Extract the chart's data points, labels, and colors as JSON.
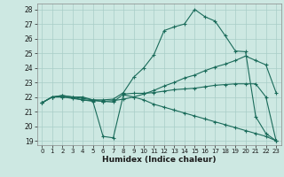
{
  "xlabel": "Humidex (Indice chaleur)",
  "bg_color": "#cde8e2",
  "grid_color": "#a8cdc7",
  "line_color": "#1a6b5a",
  "xlim": [
    -0.5,
    23.5
  ],
  "ylim": [
    18.7,
    28.4
  ],
  "yticks": [
    19,
    20,
    21,
    22,
    23,
    24,
    25,
    26,
    27,
    28
  ],
  "xticks": [
    0,
    1,
    2,
    3,
    4,
    5,
    6,
    7,
    8,
    9,
    10,
    11,
    12,
    13,
    14,
    15,
    16,
    17,
    18,
    19,
    20,
    21,
    22,
    23
  ],
  "line1_x": [
    0,
    1,
    2,
    3,
    4,
    5,
    6,
    7,
    8,
    9,
    10,
    11,
    12,
    13,
    14,
    15,
    16,
    17,
    18,
    19,
    20,
    21,
    22,
    23
  ],
  "line1_y": [
    21.6,
    22.0,
    22.1,
    22.0,
    21.9,
    21.8,
    21.8,
    21.85,
    22.3,
    23.35,
    24.0,
    24.9,
    26.55,
    26.8,
    27.0,
    28.0,
    27.5,
    27.2,
    26.2,
    25.15,
    25.1,
    20.65,
    19.5,
    19.0
  ],
  "line2_x": [
    0,
    1,
    2,
    3,
    4,
    5,
    6,
    7,
    8,
    9,
    10,
    11,
    12,
    13,
    14,
    15,
    16,
    17,
    18,
    19,
    20,
    21,
    22,
    23
  ],
  "line2_y": [
    21.6,
    22.0,
    22.1,
    22.0,
    22.0,
    21.8,
    21.7,
    21.75,
    21.85,
    22.0,
    22.2,
    22.45,
    22.75,
    23.0,
    23.3,
    23.5,
    23.8,
    24.05,
    24.25,
    24.5,
    24.8,
    24.5,
    24.2,
    22.3
  ],
  "line3_x": [
    0,
    1,
    2,
    3,
    4,
    5,
    6,
    7,
    8,
    9,
    10,
    11,
    12,
    13,
    14,
    15,
    16,
    17,
    18,
    19,
    20,
    21,
    22,
    23
  ],
  "line3_y": [
    21.6,
    22.0,
    22.0,
    21.95,
    21.8,
    21.75,
    21.7,
    21.65,
    22.2,
    22.25,
    22.25,
    22.3,
    22.4,
    22.5,
    22.55,
    22.6,
    22.7,
    22.8,
    22.85,
    22.9,
    22.9,
    22.9,
    22.0,
    19.0
  ],
  "line4_x": [
    0,
    1,
    2,
    3,
    4,
    5,
    6,
    7,
    8,
    9,
    10,
    11,
    12,
    13,
    14,
    15,
    16,
    17,
    18,
    19,
    20,
    21,
    22,
    23
  ],
  "line4_y": [
    21.6,
    22.0,
    22.0,
    21.9,
    21.8,
    21.7,
    19.3,
    19.2,
    22.15,
    22.0,
    21.8,
    21.5,
    21.3,
    21.1,
    20.9,
    20.7,
    20.5,
    20.3,
    20.1,
    19.9,
    19.7,
    19.5,
    19.3,
    19.0
  ]
}
